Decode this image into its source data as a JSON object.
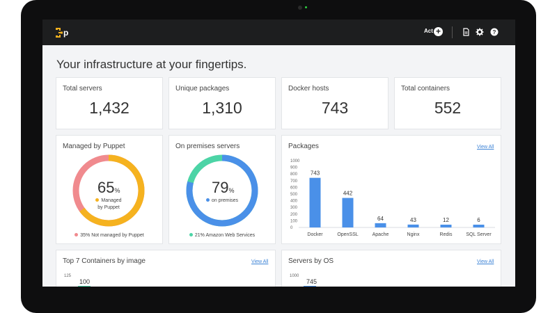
{
  "app": {
    "logo_letter": "p",
    "act_label": "Act",
    "icons": [
      "plus-icon",
      "document-icon",
      "gear-icon",
      "help-icon"
    ]
  },
  "page_title": "Your infrastructure at your fingertips.",
  "stats": [
    {
      "label": "Total servers",
      "value": "1,432"
    },
    {
      "label": "Unique packages",
      "value": "1,310"
    },
    {
      "label": "Docker hosts",
      "value": "743"
    },
    {
      "label": "Total containers",
      "value": "552"
    }
  ],
  "managed": {
    "title": "Managed by Puppet",
    "percent": "65",
    "pct_sign": "%",
    "sub_line1": "Managed",
    "sub_line2": "by Puppet",
    "legend": "35% Not managed by Puppet",
    "fraction": 0.65,
    "colors": {
      "main": "#f5b21f",
      "rest": "#f08a8e"
    }
  },
  "onprem": {
    "title": "On premises servers",
    "percent": "79",
    "pct_sign": "%",
    "sub": "on premises",
    "legend": "21% Amazon Web Services",
    "fraction": 0.79,
    "colors": {
      "main": "#4a90e8",
      "rest": "#4cd4a6"
    }
  },
  "packages": {
    "title": "Packages",
    "view_all": "View All",
    "chart_data": {
      "type": "bar",
      "categories": [
        "Docker",
        "OpenSSL",
        "Apache",
        "Nginx",
        "Redis",
        "SQL Server"
      ],
      "values": [
        743,
        442,
        64,
        43,
        12,
        6
      ],
      "ylim": [
        0,
        1000
      ],
      "yticks": [
        "1000",
        "900",
        "800",
        "700",
        "600",
        "500",
        "400",
        "300",
        "200",
        "100",
        "0"
      ],
      "bar_color": "#4a90e8"
    }
  },
  "containers": {
    "title": "Top 7 Containers by image",
    "view_all": "View All",
    "tick_top": "125",
    "first_value": "100"
  },
  "servers_os": {
    "title": "Servers by OS",
    "view_all": "View All",
    "tick_top": "1000",
    "first_value": "745"
  }
}
